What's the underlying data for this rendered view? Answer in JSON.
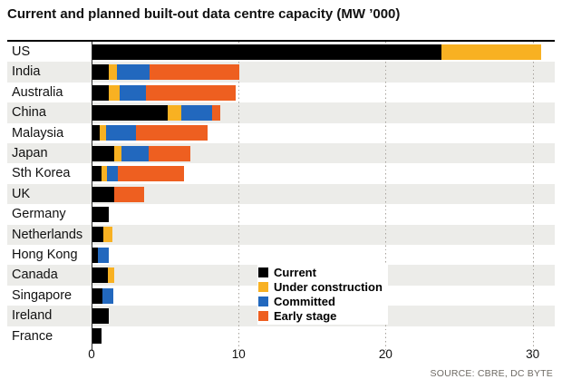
{
  "title": "Current and planned built-out data centre capacity (MW ’000)",
  "source": "SOURCE: CBRE, DC BYTE",
  "colors": {
    "current": "#000000",
    "under_construction": "#F8B122",
    "committed": "#2268BE",
    "early_stage": "#EE5F20",
    "band": "#ECECE9",
    "grid_dots": "#A6A19B"
  },
  "chart_data": {
    "type": "bar",
    "orientation": "horizontal",
    "stacked": true,
    "title": "Current and planned built-out data centre capacity (MW ’000)",
    "xlabel": "",
    "ylabel": "",
    "xlim": [
      0,
      31.5
    ],
    "x_ticks": [
      0,
      10,
      20,
      30
    ],
    "grid": "dotted-vertical",
    "legend_position": "inside-lower-middle",
    "categories": [
      "US",
      "India",
      "Australia",
      "China",
      "Malaysia",
      "Japan",
      "Sth Korea",
      "UK",
      "Germany",
      "Netherlands",
      "Hong Kong",
      "Canada",
      "Singapore",
      "Ireland",
      "France"
    ],
    "series": [
      {
        "name": "Current",
        "color": "#000000",
        "values": [
          23.8,
          1.15,
          1.2,
          5.2,
          0.55,
          1.55,
          0.7,
          1.55,
          1.2,
          0.8,
          0.45,
          1.1,
          0.75,
          1.15,
          0.7
        ]
      },
      {
        "name": "Under construction",
        "color": "#F8B122",
        "values": [
          6.8,
          0.6,
          0.7,
          0.9,
          0.45,
          0.5,
          0.35,
          0,
          0,
          0.6,
          0,
          0.45,
          0,
          0,
          0
        ]
      },
      {
        "name": "Committed",
        "color": "#2268BE",
        "values": [
          0,
          2.2,
          1.8,
          2.1,
          2.0,
          1.85,
          0.75,
          0,
          0,
          0,
          0.75,
          0,
          0.7,
          0,
          0
        ]
      },
      {
        "name": "Early stage",
        "color": "#EE5F20",
        "values": [
          0,
          6.1,
          6.1,
          0.55,
          4.9,
          2.8,
          4.5,
          2.05,
          0,
          0,
          0,
          0,
          0,
          0,
          0
        ]
      }
    ]
  }
}
